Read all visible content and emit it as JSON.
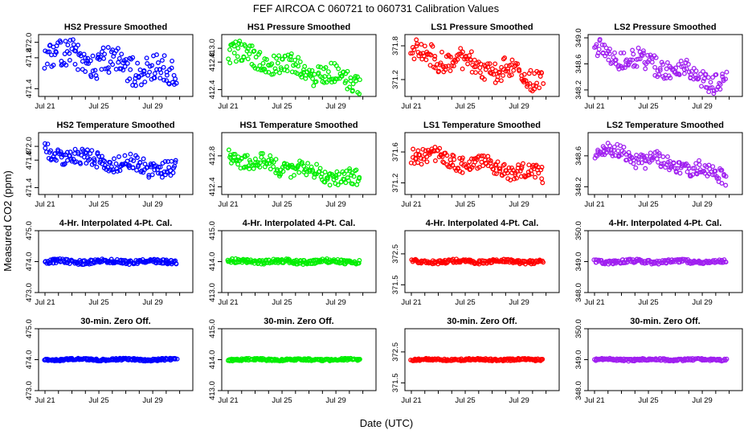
{
  "figure": {
    "title": "FEF   AIRCOA C   060721 to 060731   Calibration Values",
    "xlabel": "Date (UTC)",
    "ylabel": "Measured CO2 (ppm)"
  },
  "chart_data": [
    {
      "type": "scatter",
      "title": "HS2 Pressure Smoothed",
      "color": "#0000ff",
      "ylim": [
        471.3,
        472.1
      ],
      "yticks": [
        {
          "v": 471.4,
          "label": "471.4"
        },
        {
          "v": 471.8,
          "label": "471.8"
        },
        {
          "v": 472.0,
          "label": "472.0"
        }
      ],
      "xticks": [
        "Jul 21",
        "Jul 25",
        "Jul 29"
      ],
      "n": 150,
      "seed": 11,
      "trend": [
        471.85,
        471.6
      ],
      "noise": 0.18
    },
    {
      "type": "scatter",
      "title": "HS1 Pressure Smoothed",
      "color": "#00ee00",
      "ylim": [
        412.3,
        413.2
      ],
      "yticks": [
        {
          "v": 412.4,
          "label": "412.4"
        },
        {
          "v": 412.8,
          "label": "412.8"
        },
        {
          "v": 413.0,
          "label": "413.0"
        }
      ],
      "xticks": [
        "Jul 21",
        "Jul 25",
        "Jul 29"
      ],
      "n": 150,
      "seed": 12,
      "trend": [
        412.95,
        412.5
      ],
      "noise": 0.15
    },
    {
      "type": "scatter",
      "title": "LS1 Pressure Smoothed",
      "color": "#ff0000",
      "ylim": [
        370.9,
        372.0
      ],
      "yticks": [
        {
          "v": 371.2,
          "label": "371.2"
        },
        {
          "v": 371.8,
          "label": "371.8"
        }
      ],
      "xticks": [
        "Jul 21",
        "Jul 25",
        "Jul 29"
      ],
      "n": 150,
      "seed": 13,
      "trend": [
        371.7,
        371.2
      ],
      "noise": 0.2
    },
    {
      "type": "scatter",
      "title": "LS2 Pressure Smoothed",
      "color": "#a020f0",
      "ylim": [
        348.1,
        349.05
      ],
      "yticks": [
        {
          "v": 348.2,
          "label": "348.2"
        },
        {
          "v": 348.6,
          "label": "348.6"
        },
        {
          "v": 349.0,
          "label": "349.0"
        }
      ],
      "xticks": [
        "Jul 21",
        "Jul 25",
        "Jul 29"
      ],
      "n": 150,
      "seed": 14,
      "trend": [
        348.82,
        348.3
      ],
      "noise": 0.15
    },
    {
      "type": "scatter",
      "title": "HS2 Temperature Smoothed",
      "color": "#0000ff",
      "ylim": [
        471.3,
        472.2
      ],
      "yticks": [
        {
          "v": 471.4,
          "label": "471.4"
        },
        {
          "v": 471.8,
          "label": "471.8"
        },
        {
          "v": 472.0,
          "label": "472.0"
        }
      ],
      "xticks": [
        "Jul 21",
        "Jul 25",
        "Jul 29"
      ],
      "n": 150,
      "seed": 21,
      "trend": [
        471.9,
        471.65
      ],
      "noise": 0.12
    },
    {
      "type": "scatter",
      "title": "HS1 Temperature Smoothed",
      "color": "#00ee00",
      "ylim": [
        412.3,
        413.1
      ],
      "yticks": [
        {
          "v": 412.4,
          "label": "412.4"
        },
        {
          "v": 412.8,
          "label": "412.8"
        }
      ],
      "xticks": [
        "Jul 21",
        "Jul 25",
        "Jul 29"
      ],
      "n": 150,
      "seed": 22,
      "trend": [
        412.78,
        412.48
      ],
      "noise": 0.1
    },
    {
      "type": "scatter",
      "title": "LS1 Temperature Smoothed",
      "color": "#ff0000",
      "ylim": [
        371.05,
        371.85
      ],
      "yticks": [
        {
          "v": 371.2,
          "label": "371.2"
        },
        {
          "v": 371.6,
          "label": "371.6"
        }
      ],
      "xticks": [
        "Jul 21",
        "Jul 25",
        "Jul 29"
      ],
      "n": 150,
      "seed": 23,
      "trend": [
        371.58,
        371.3
      ],
      "noise": 0.1
    },
    {
      "type": "scatter",
      "title": "LS2 Temperature Smoothed",
      "color": "#a020f0",
      "ylim": [
        348.1,
        348.9
      ],
      "yticks": [
        {
          "v": 348.2,
          "label": "348.2"
        },
        {
          "v": 348.6,
          "label": "348.6"
        }
      ],
      "xticks": [
        "Jul 21",
        "Jul 25",
        "Jul 29"
      ],
      "n": 150,
      "seed": 24,
      "trend": [
        348.68,
        348.35
      ],
      "noise": 0.1
    },
    {
      "type": "scatter",
      "title": "4-Hr. Interpolated 4-Pt. Cal.",
      "color": "#0000ff",
      "ylim": [
        473.0,
        475.0
      ],
      "yticks": [
        {
          "v": 473.0,
          "label": "473.0"
        },
        {
          "v": 474.0,
          "label": "474.0"
        },
        {
          "v": 475.0,
          "label": "475.0"
        }
      ],
      "xticks": [
        "Jul 21",
        "Jul 25",
        "Jul 29"
      ],
      "n": 170,
      "seed": 31,
      "trend": [
        474.0,
        474.0
      ],
      "noise": 0.07
    },
    {
      "type": "scatter",
      "title": "4-Hr. Interpolated 4-Pt. Cal.",
      "color": "#00ee00",
      "ylim": [
        413.0,
        415.0
      ],
      "yticks": [
        {
          "v": 413.0,
          "label": "413.0"
        },
        {
          "v": 414.0,
          "label": "414.0"
        },
        {
          "v": 415.0,
          "label": "415.0"
        }
      ],
      "xticks": [
        "Jul 21",
        "Jul 25",
        "Jul 29"
      ],
      "n": 170,
      "seed": 32,
      "trend": [
        414.0,
        414.0
      ],
      "noise": 0.07
    },
    {
      "type": "scatter",
      "title": "4-Hr. Interpolated 4-Pt. Cal.",
      "color": "#ff0000",
      "ylim": [
        371.25,
        373.25
      ],
      "yticks": [
        {
          "v": 371.5,
          "label": "371.5"
        },
        {
          "v": 372.5,
          "label": "372.5"
        }
      ],
      "xticks": [
        "Jul 21",
        "Jul 25",
        "Jul 29"
      ],
      "n": 170,
      "seed": 33,
      "trend": [
        372.25,
        372.25
      ],
      "noise": 0.06
    },
    {
      "type": "scatter",
      "title": "4-Hr. Interpolated 4-Pt. Cal.",
      "color": "#a020f0",
      "ylim": [
        348.0,
        350.0
      ],
      "yticks": [
        {
          "v": 348.0,
          "label": "348.0"
        },
        {
          "v": 349.0,
          "label": "349.0"
        },
        {
          "v": 350.0,
          "label": "350.0"
        }
      ],
      "xticks": [
        "Jul 21",
        "Jul 25",
        "Jul 29"
      ],
      "n": 170,
      "seed": 34,
      "trend": [
        349.0,
        349.0
      ],
      "noise": 0.06
    },
    {
      "type": "scatter",
      "title": "30-min. Zero Off.",
      "color": "#0000ff",
      "ylim": [
        473.0,
        475.0
      ],
      "yticks": [
        {
          "v": 473.0,
          "label": "473.0"
        },
        {
          "v": 474.0,
          "label": "474.0"
        },
        {
          "v": 475.0,
          "label": "475.0"
        }
      ],
      "xticks": [
        "Jul 21",
        "Jul 25",
        "Jul 29"
      ],
      "n": 190,
      "seed": 41,
      "trend": [
        474.0,
        474.0
      ],
      "noise": 0.035
    },
    {
      "type": "scatter",
      "title": "30-min. Zero Off.",
      "color": "#00ee00",
      "ylim": [
        413.0,
        415.0
      ],
      "yticks": [
        {
          "v": 413.0,
          "label": "413.0"
        },
        {
          "v": 414.0,
          "label": "414.0"
        },
        {
          "v": 415.0,
          "label": "415.0"
        }
      ],
      "xticks": [
        "Jul 21",
        "Jul 25",
        "Jul 29"
      ],
      "n": 190,
      "seed": 42,
      "trend": [
        414.0,
        414.0
      ],
      "noise": 0.035
    },
    {
      "type": "scatter",
      "title": "30-min. Zero Off.",
      "color": "#ff0000",
      "ylim": [
        371.25,
        373.25
      ],
      "yticks": [
        {
          "v": 371.5,
          "label": "371.5"
        },
        {
          "v": 372.5,
          "label": "372.5"
        }
      ],
      "xticks": [
        "Jul 21",
        "Jul 25",
        "Jul 29"
      ],
      "n": 190,
      "seed": 43,
      "trend": [
        372.25,
        372.25
      ],
      "noise": 0.035
    },
    {
      "type": "scatter",
      "title": "30-min. Zero Off.",
      "color": "#a020f0",
      "ylim": [
        348.0,
        350.0
      ],
      "yticks": [
        {
          "v": 348.0,
          "label": "348.0"
        },
        {
          "v": 349.0,
          "label": "349.0"
        },
        {
          "v": 350.0,
          "label": "350.0"
        }
      ],
      "xticks": [
        "Jul 21",
        "Jul 25",
        "Jul 29"
      ],
      "n": 190,
      "seed": 44,
      "trend": [
        349.0,
        349.0
      ],
      "noise": 0.035
    }
  ]
}
